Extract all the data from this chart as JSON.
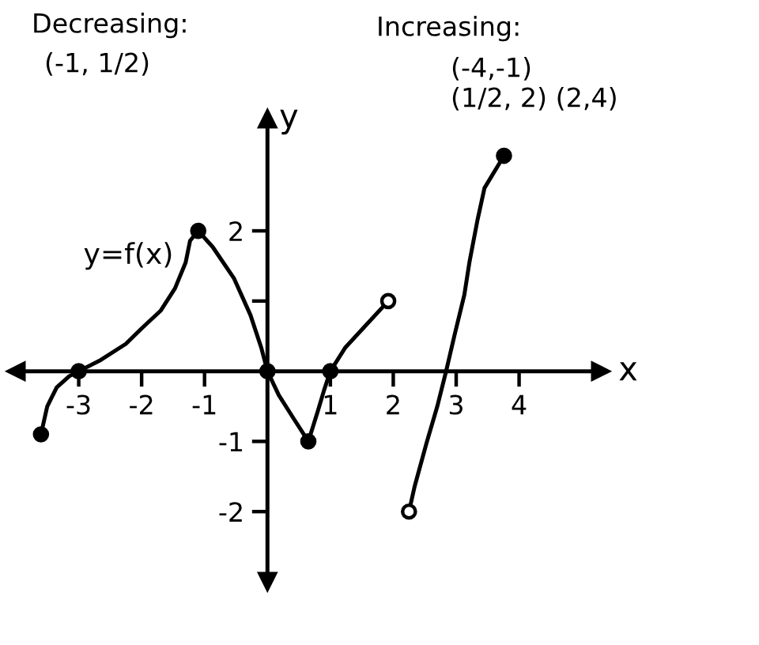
{
  "chart_data": {
    "type": "line",
    "xlabel": "x",
    "ylabel": "y",
    "annotations": [
      "Decreasing:",
      "(-1, 1/2)",
      "Increasing:",
      "(-4,-1)",
      "(1/2, 2) (2,4)"
    ],
    "xlim": [
      -4.0,
      5.3
    ],
    "ylim": [
      -3.0,
      3.6
    ],
    "xticks": [
      -3,
      -2,
      -1,
      1,
      2,
      3,
      4
    ],
    "yticks": [
      -2,
      -1,
      {
        "value": 1,
        "label": null
      },
      2
    ],
    "series": [
      {
        "name": "y=f(x)",
        "color": "#000000",
        "x": [
          -3.6,
          -3.5,
          -3.35,
          -3.15,
          -3.0,
          -2.65,
          -2.25,
          -2.0,
          -1.7,
          -1.47,
          -1.3,
          -1.23,
          -1.1,
          -0.87,
          -0.53,
          -0.27,
          -0.1,
          0.0,
          0.18,
          0.42,
          0.65,
          0.8,
          0.9,
          1.0,
          1.24,
          1.55,
          1.92
        ],
        "values": [
          -0.9,
          -0.5,
          -0.23,
          -0.07,
          0.0,
          0.16,
          0.39,
          0.61,
          0.86,
          1.18,
          1.55,
          1.86,
          2.0,
          1.77,
          1.32,
          0.8,
          0.34,
          0.0,
          -0.34,
          -0.68,
          -1.0,
          -0.57,
          -0.27,
          0.0,
          0.34,
          0.64,
          1.0
        ]
      },
      {
        "color": "#000000",
        "x": [
          2.25,
          2.34,
          2.53,
          2.7,
          2.84,
          2.97,
          3.13,
          3.21,
          3.34,
          3.45,
          3.76
        ],
        "values": [
          -2.0,
          -1.64,
          -1.02,
          -0.5,
          0.0,
          0.5,
          1.09,
          1.55,
          2.16,
          2.61,
          3.07
        ]
      },
      {
        "type": "scatter",
        "color": "#000000",
        "marker": "circle",
        "x": [
          -3.6,
          -3.0,
          -1.1,
          0.0,
          0.65,
          1.0,
          3.76
        ],
        "values": [
          -0.9,
          0.0,
          2.0,
          0.0,
          -1.0,
          0.0,
          3.07
        ]
      },
      {
        "type": "scatter",
        "color": "#ffffff",
        "marker": "circle",
        "x": [
          1.92,
          2.25
        ],
        "values": [
          1.0,
          -2.0
        ]
      }
    ]
  }
}
